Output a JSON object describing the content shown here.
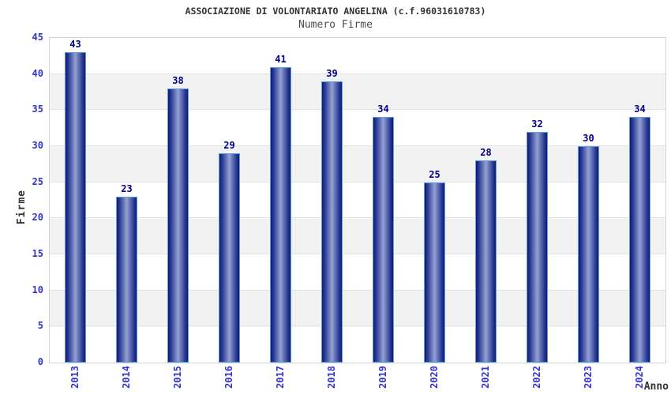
{
  "chart_data": {
    "type": "bar",
    "title": "ASSOCIAZIONE DI VOLONTARIATO ANGELINA (c.f.96031610783)",
    "subtitle": "Numero Firme",
    "xlabel": "Anno",
    "ylabel": "Firme",
    "categories": [
      "2013",
      "2014",
      "2015",
      "2016",
      "2017",
      "2018",
      "2019",
      "2020",
      "2021",
      "2022",
      "2023",
      "2024"
    ],
    "values": [
      43,
      23,
      38,
      29,
      41,
      39,
      34,
      25,
      28,
      32,
      30,
      34
    ],
    "ylim": [
      0,
      45
    ],
    "yticks": [
      0,
      5,
      10,
      15,
      20,
      25,
      30,
      35,
      40,
      45
    ],
    "grid": "horizontal",
    "background_bands": "alternating white/gray every 5 units",
    "legend_position": "none",
    "bar_labels_shown": true,
    "x_tick_rotation_degrees": 90
  },
  "colors": {
    "title": "#333333",
    "subtitle": "#4d4d4d",
    "tick_blue": "#3232cd",
    "value_navy": "#00008b",
    "bar_dark": "#131a6b",
    "bar_mid": "#2e3f99",
    "bar_light": "#95a1d1",
    "bar_border": "#5aa0e8",
    "band_gray": "#f2f2f2",
    "grid_line": "#e3e3e3",
    "plot_border": "#d4d4d4",
    "background": "#ffffff"
  }
}
